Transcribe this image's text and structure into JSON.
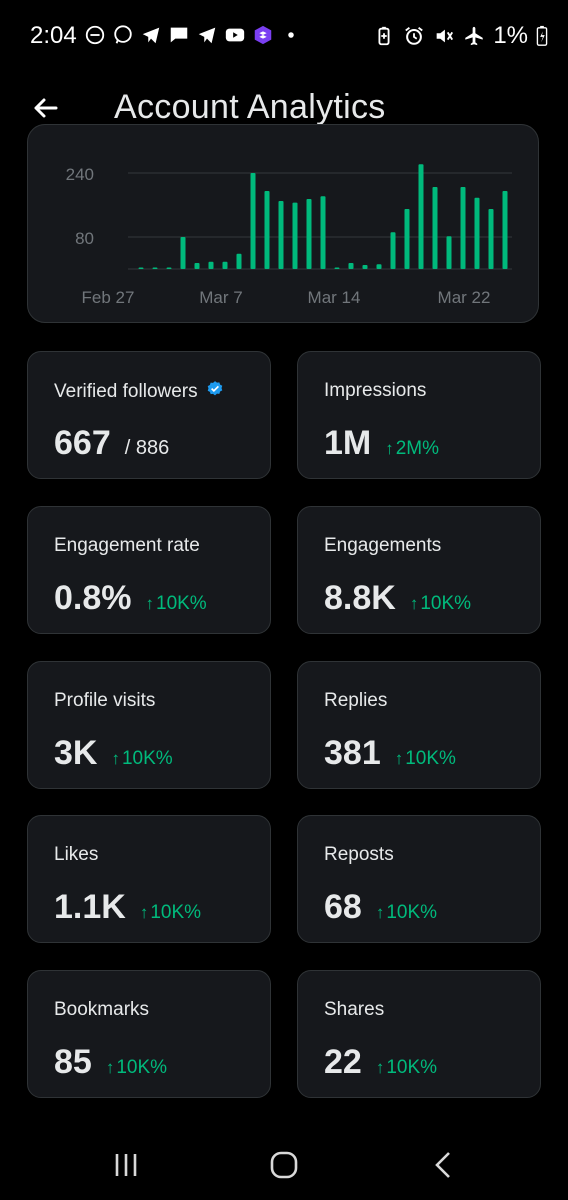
{
  "status_bar": {
    "time": "2:04",
    "battery": "1%",
    "left_icons": [
      "do-not-disturb-icon",
      "whatsapp-icon",
      "telegram-icon",
      "message-icon",
      "telegram-icon",
      "youtube-icon",
      "app-icon",
      "dot-icon"
    ],
    "right_icons": [
      "battery-saver-icon",
      "alarm-icon",
      "vibrate-off-icon",
      "airplane-icon"
    ]
  },
  "header": {
    "title": "Account Analytics",
    "back_icon": "arrow-left-icon"
  },
  "chart_data": {
    "type": "bar",
    "yticks": [
      240,
      80
    ],
    "xtick_labels": [
      "Feb 27",
      "Mar 7",
      "Mar 14",
      "Mar 22"
    ],
    "series": [
      {
        "color": "#00ba7c",
        "values": [
          0,
          0,
          0,
          80,
          15,
          18,
          18,
          38,
          240,
          195,
          170,
          166,
          175,
          182,
          0,
          15,
          10,
          12,
          92,
          150,
          262,
          205,
          82,
          205,
          178,
          150,
          195
        ]
      }
    ]
  },
  "cards": [
    {
      "label": "Verified followers",
      "value": "667",
      "total": "/ 886",
      "change": "",
      "verified": true
    },
    {
      "label": "Impressions",
      "value": "1M",
      "change": "2M%"
    },
    {
      "label": "Engagement rate",
      "value": "0.8%",
      "change": "10K%"
    },
    {
      "label": "Engagements",
      "value": "8.8K",
      "change": "10K%"
    },
    {
      "label": "Profile visits",
      "value": "3K",
      "change": "10K%"
    },
    {
      "label": "Replies",
      "value": "381",
      "change": "10K%"
    },
    {
      "label": "Likes",
      "value": "1.1K",
      "change": "10K%"
    },
    {
      "label": "Reposts",
      "value": "68",
      "change": "10K%"
    },
    {
      "label": "Bookmarks",
      "value": "85",
      "change": "10K%"
    },
    {
      "label": "Shares",
      "value": "22",
      "change": "10K%"
    }
  ],
  "arrow_glyph": "↑",
  "colors": {
    "accent_green": "#00ba7c",
    "card_bg": "#16181c",
    "border": "#2f3336",
    "verified_blue": "#1d9bf0"
  },
  "navbar": [
    "recent-apps-icon",
    "home-icon",
    "back-icon"
  ]
}
